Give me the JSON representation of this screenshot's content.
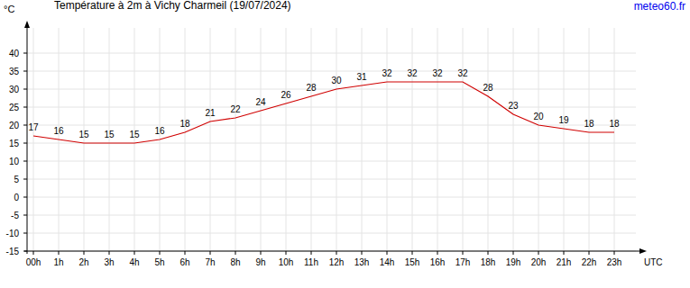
{
  "chart_data": {
    "type": "line",
    "title": "Température à 2m à Vichy Charmeil (19/07/2024)",
    "source": "meteo60.fr",
    "y_label": "°C",
    "x_label": "UTC",
    "x": [
      0,
      1,
      2,
      3,
      4,
      5,
      6,
      7,
      8,
      9,
      10,
      11,
      12,
      13,
      14,
      15,
      16,
      17,
      18,
      19,
      20,
      21,
      22,
      23
    ],
    "values": [
      17,
      16,
      15,
      15,
      15,
      16,
      18,
      21,
      22,
      24,
      26,
      28,
      30,
      31,
      32,
      32,
      32,
      32,
      28,
      23,
      20,
      19,
      18,
      18
    ],
    "color": "#d00000",
    "xlim": [
      -0.25,
      24
    ],
    "xticks": [
      {
        "value": 0,
        "label": "00h"
      },
      {
        "value": 1,
        "label": "1h"
      },
      {
        "value": 2,
        "label": "2h"
      },
      {
        "value": 3,
        "label": "3h"
      },
      {
        "value": 4,
        "label": "4h"
      },
      {
        "value": 5,
        "label": "5h"
      },
      {
        "value": 6,
        "label": "6h"
      },
      {
        "value": 7,
        "label": "7h"
      },
      {
        "value": 8,
        "label": "8h"
      },
      {
        "value": 9,
        "label": "9h"
      },
      {
        "value": 10,
        "label": "10h"
      },
      {
        "value": 11,
        "label": "11h"
      },
      {
        "value": 12,
        "label": "12h"
      },
      {
        "value": 13,
        "label": "13h"
      },
      {
        "value": 14,
        "label": "14h"
      },
      {
        "value": 15,
        "label": "15h"
      },
      {
        "value": 16,
        "label": "16h"
      },
      {
        "value": 17,
        "label": "17h"
      },
      {
        "value": 18,
        "label": "18h"
      },
      {
        "value": 19,
        "label": "19h"
      },
      {
        "value": 20,
        "label": "20h"
      },
      {
        "value": 21,
        "label": "21h"
      },
      {
        "value": 22,
        "label": "22h"
      },
      {
        "value": 23,
        "label": "23h"
      }
    ],
    "ylim": [
      -15,
      47
    ],
    "yticks": [
      -15,
      -10,
      -5,
      0,
      5,
      10,
      15,
      20,
      25,
      30,
      35,
      40
    ],
    "grid": true,
    "data_labels": true
  }
}
